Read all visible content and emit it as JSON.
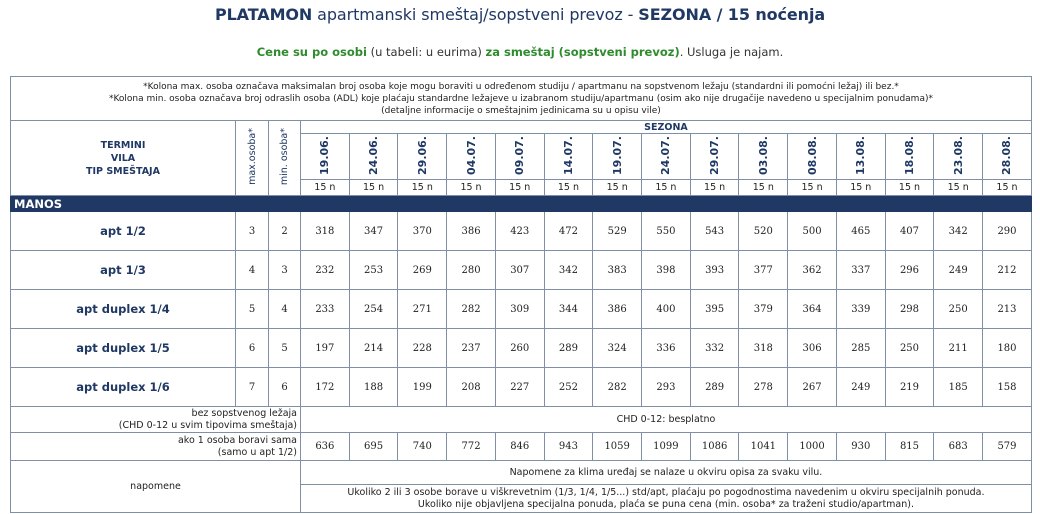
{
  "header": {
    "title_bold_1": "PLATAMON",
    "title_normal": " apartmanski smeštaj/sopstveni prevoz - ",
    "title_bold_2": "SEZONA / 15 noćenja",
    "sub_green_1": "Cene su po osobi",
    "sub_normal_1": " (u tabeli: u eurima) ",
    "sub_green_2": "za smeštaj (sopstveni prevoz)",
    "sub_normal_2": ". Usluga je najam."
  },
  "notes": {
    "line1": "*Kolona max. osoba označava maksimalan broj osoba koje mogu boraviti u određenom studiju / apartmanu na sopstvenom ležaju (standardni ili pomoćni ležaj) ili bez.*",
    "line2": "*Kolona min. osoba označava broj odraslih osoba (ADL) koje plaćaju standardne ležajeve u izabranom studiju/apartmanu (osim ako nije drugačije navedeno u specijalnim ponudama)*",
    "line3": "(detaljne informacije o smeštajnim jedinicama su u opisu vile)"
  },
  "table": {
    "left_header": {
      "l1": "TERMINI",
      "l2": "VILA",
      "l3": "TIP SMEŠTAJA"
    },
    "max_label": "max.osoba*",
    "min_label": "min. osoba*",
    "season_label": "SEZONA",
    "dates": [
      "19.06.",
      "24.06.",
      "29.06.",
      "04.07.",
      "09.07.",
      "14.07.",
      "19.07.",
      "24.07.",
      "29.07.",
      "03.08.",
      "08.08.",
      "13.08.",
      "18.08.",
      "23.08.",
      "28.08."
    ],
    "nights": [
      "15 n",
      "15 n",
      "15 n",
      "15 n",
      "15 n",
      "15 n",
      "15 n",
      "15 n",
      "15 n",
      "15 n",
      "15 n",
      "15 n",
      "15 n",
      "15 n",
      "15 n"
    ],
    "villa": "MANOS",
    "rows": [
      {
        "name": "apt 1/2",
        "max": "3",
        "min": "2",
        "prices": [
          "318",
          "347",
          "370",
          "386",
          "423",
          "472",
          "529",
          "550",
          "543",
          "520",
          "500",
          "465",
          "407",
          "342",
          "290"
        ]
      },
      {
        "name": "apt 1/3",
        "max": "4",
        "min": "3",
        "prices": [
          "232",
          "253",
          "269",
          "280",
          "307",
          "342",
          "383",
          "398",
          "393",
          "377",
          "362",
          "337",
          "296",
          "249",
          "212"
        ]
      },
      {
        "name": "apt duplex 1/4",
        "max": "5",
        "min": "4",
        "prices": [
          "233",
          "254",
          "271",
          "282",
          "309",
          "344",
          "386",
          "400",
          "395",
          "379",
          "364",
          "339",
          "298",
          "250",
          "213"
        ]
      },
      {
        "name": "apt duplex 1/5",
        "max": "6",
        "min": "5",
        "prices": [
          "197",
          "214",
          "228",
          "237",
          "260",
          "289",
          "324",
          "336",
          "332",
          "318",
          "306",
          "285",
          "250",
          "211",
          "180"
        ]
      },
      {
        "name": "apt duplex 1/6",
        "max": "7",
        "min": "6",
        "prices": [
          "172",
          "188",
          "199",
          "208",
          "227",
          "252",
          "282",
          "293",
          "289",
          "278",
          "267",
          "249",
          "219",
          "185",
          "158"
        ]
      }
    ],
    "chd": {
      "label1": "bez sopstvenog ležaja",
      "label2": "(CHD 0-12 u svim tipovima smeštaja)",
      "value": "CHD 0-12: besplatno"
    },
    "single": {
      "label1": "ako 1 osoba boravi sama",
      "label2": "(samo u apt 1/2)",
      "prices": [
        "636",
        "695",
        "740",
        "772",
        "846",
        "943",
        "1059",
        "1099",
        "1086",
        "1041",
        "1000",
        "930",
        "815",
        "683",
        "579"
      ]
    },
    "napomene": {
      "label": "napomene",
      "note1": "Napomene za klima uređaj se nalaze u okviru opisa za svaku vilu.",
      "note2a": "Ukoliko 2 ili 3 osobe borave u viškrevetnim (1/3, 1/4, 1/5...) std/apt, plaćaju po pogodnostima navedenim u okviru specijalnih ponuda.",
      "note2b": "Ukoliko nije objavljena specijalna ponuda, plaća se puna cena (min. osoba* za traženi studio/apartman)."
    }
  }
}
